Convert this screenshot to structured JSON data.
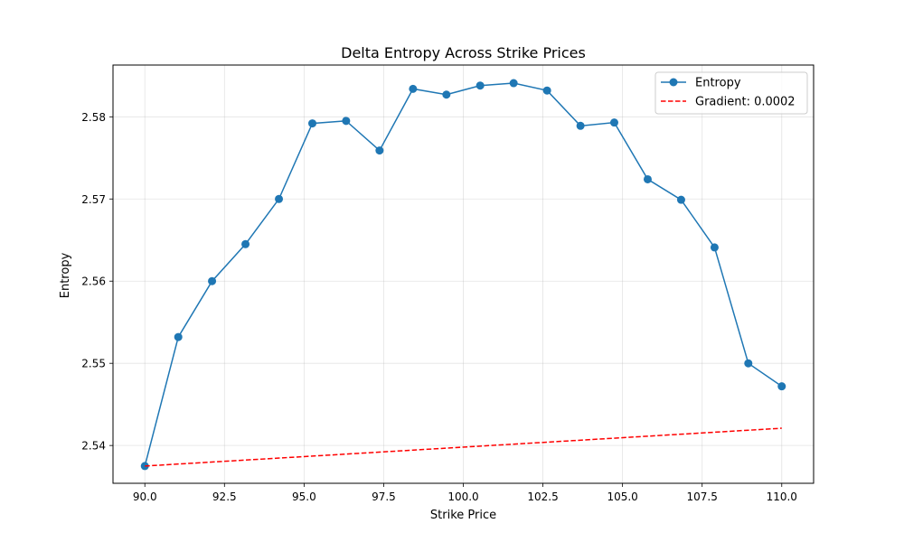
{
  "chart_data": {
    "type": "line",
    "title": "Delta Entropy Across Strike Prices",
    "xlabel": "Strike Price",
    "ylabel": "Entropy",
    "xlim": [
      89.0,
      111.0
    ],
    "ylim": [
      2.5354,
      2.5863
    ],
    "xticks": [
      90.0,
      92.5,
      95.0,
      97.5,
      100.0,
      102.5,
      105.0,
      107.5,
      110.0
    ],
    "xtick_labels": [
      "90.0",
      "92.5",
      "95.0",
      "97.5",
      "100.0",
      "102.5",
      "105.0",
      "107.5",
      "110.0"
    ],
    "yticks": [
      2.54,
      2.55,
      2.56,
      2.57,
      2.58
    ],
    "ytick_labels": [
      "2.54",
      "2.55",
      "2.56",
      "2.57",
      "2.58"
    ],
    "grid": true,
    "legend": "top-right",
    "series": [
      {
        "name": "Entropy",
        "style": "solid-marker",
        "color": "#1f77b4",
        "x": [
          90.0,
          91.05,
          92.11,
          93.16,
          94.21,
          95.26,
          96.32,
          97.37,
          98.42,
          99.47,
          100.53,
          101.58,
          102.63,
          103.68,
          104.74,
          105.79,
          106.84,
          107.89,
          108.95,
          110.0
        ],
        "y": [
          2.5375,
          2.5532,
          2.56,
          2.5645,
          2.57,
          2.5792,
          2.5795,
          2.5759,
          2.5834,
          2.5827,
          2.5838,
          2.5841,
          2.5832,
          2.5789,
          2.5793,
          2.5724,
          2.5699,
          2.5641,
          2.55,
          2.5472
        ]
      },
      {
        "name": "Gradient: 0.0002",
        "style": "dashed",
        "color": "#ff0000",
        "x": [
          90.0,
          110.0
        ],
        "y": [
          2.5375,
          2.5421
        ]
      }
    ]
  }
}
